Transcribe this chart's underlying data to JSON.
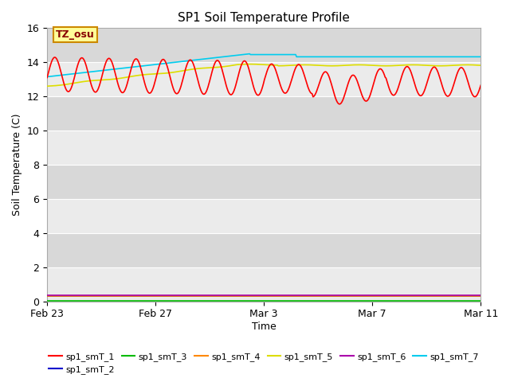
{
  "title": "SP1 Soil Temperature Profile",
  "xlabel": "Time",
  "ylabel": "Soil Temperature (C)",
  "ylim": [
    0,
    16
  ],
  "yticks": [
    0,
    2,
    4,
    6,
    8,
    10,
    12,
    14,
    16
  ],
  "bg_color_light": "#ebebeb",
  "bg_color_dark": "#d8d8d8",
  "fig_bg": "#ffffff",
  "annotation_text": "TZ_osu",
  "annotation_bg": "#ffff99",
  "annotation_border": "#cc8800",
  "annotation_text_color": "#880000",
  "series": {
    "sp1_smT_1": {
      "color": "#ff0000",
      "linewidth": 1.2
    },
    "sp1_smT_2": {
      "color": "#0000cc",
      "linewidth": 1.2
    },
    "sp1_smT_3": {
      "color": "#00bb00",
      "linewidth": 1.2
    },
    "sp1_smT_4": {
      "color": "#ff8800",
      "linewidth": 1.2
    },
    "sp1_smT_5": {
      "color": "#dddd00",
      "linewidth": 1.2
    },
    "sp1_smT_6": {
      "color": "#aa00aa",
      "linewidth": 1.2
    },
    "sp1_smT_7": {
      "color": "#00ccee",
      "linewidth": 1.2
    }
  },
  "xtick_labels": [
    "Feb 23",
    "Feb 27",
    "Mar 3",
    "Mar 7",
    "Mar 11"
  ],
  "xtick_positions": [
    0,
    4,
    8,
    12,
    16
  ],
  "legend_order": [
    "sp1_smT_1",
    "sp1_smT_2",
    "sp1_smT_3",
    "sp1_smT_4",
    "sp1_smT_5",
    "sp1_smT_6",
    "sp1_smT_7"
  ]
}
